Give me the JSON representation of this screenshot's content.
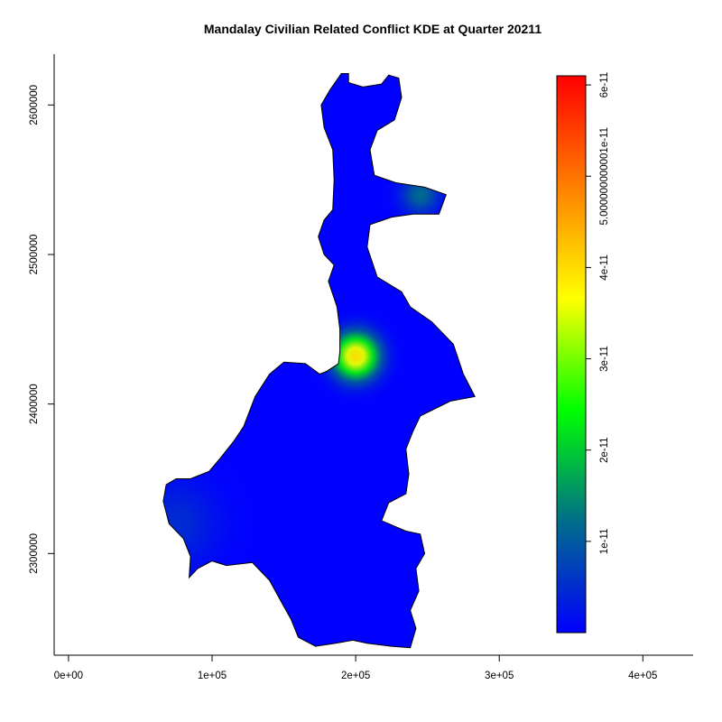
{
  "chart_data": {
    "type": "heatmap",
    "title": "Mandalay Civilian Related Conflict KDE at Quarter 20211",
    "subtitle": "",
    "xlabel": "",
    "ylabel": "",
    "xlim": [
      -10000,
      435000
    ],
    "ylim": [
      2232000,
      2634000
    ],
    "x_ticks": [
      0,
      100000,
      200000,
      300000,
      400000
    ],
    "x_tick_labels": [
      "0e+00",
      "1e+05",
      "2e+05",
      "3e+05",
      "4e+05"
    ],
    "y_ticks": [
      2300000,
      2400000,
      2500000,
      2600000
    ],
    "y_tick_labels": [
      "2300000",
      "2400000",
      "2500000",
      "2600000"
    ],
    "grid": false,
    "legend": "right",
    "colorbar": {
      "min": 0,
      "max": 6.1e-11,
      "ticks": [
        1e-11,
        2e-11,
        3e-11,
        4e-11,
        5e-11,
        6e-11
      ],
      "tick_labels": [
        "1e-11",
        "2e-11",
        "3e-11",
        "4e-11",
        "5.000000000001e-11",
        "6e-11"
      ],
      "colors": [
        "#0000ff",
        "#006d8a",
        "#00ff00",
        "#ffff00",
        "#ff8000",
        "#ff0000"
      ]
    },
    "region_outline": [
      [
        190000,
        2621000
      ],
      [
        195000,
        2621000
      ],
      [
        195000,
        2615000
      ],
      [
        205000,
        2612000
      ],
      [
        218000,
        2614000
      ],
      [
        223000,
        2620000
      ],
      [
        230000,
        2618000
      ],
      [
        232000,
        2605000
      ],
      [
        227000,
        2590000
      ],
      [
        215000,
        2583000
      ],
      [
        210000,
        2570000
      ],
      [
        213000,
        2553000
      ],
      [
        228000,
        2548000
      ],
      [
        248000,
        2545000
      ],
      [
        263000,
        2540000
      ],
      [
        258000,
        2527000
      ],
      [
        240000,
        2527000
      ],
      [
        225000,
        2525000
      ],
      [
        210000,
        2520000
      ],
      [
        208000,
        2505000
      ],
      [
        215000,
        2485000
      ],
      [
        232000,
        2475000
      ],
      [
        238000,
        2465000
      ],
      [
        253000,
        2455000
      ],
      [
        268000,
        2440000
      ],
      [
        275000,
        2420000
      ],
      [
        283000,
        2405000
      ],
      [
        266000,
        2402000
      ],
      [
        245000,
        2392000
      ],
      [
        240000,
        2382000
      ],
      [
        235000,
        2370000
      ],
      [
        237000,
        2353000
      ],
      [
        235000,
        2340000
      ],
      [
        223000,
        2334000
      ],
      [
        218000,
        2322000
      ],
      [
        235000,
        2315000
      ],
      [
        245000,
        2313000
      ],
      [
        248000,
        2300000
      ],
      [
        242000,
        2290000
      ],
      [
        244000,
        2275000
      ],
      [
        238000,
        2262000
      ],
      [
        242000,
        2250000
      ],
      [
        238000,
        2237000
      ],
      [
        225000,
        2238000
      ],
      [
        208000,
        2240000
      ],
      [
        198000,
        2242000
      ],
      [
        186000,
        2240000
      ],
      [
        172000,
        2238000
      ],
      [
        160000,
        2244000
      ],
      [
        155000,
        2256000
      ],
      [
        148000,
        2268000
      ],
      [
        140000,
        2282000
      ],
      [
        128000,
        2294000
      ],
      [
        110000,
        2292000
      ],
      [
        100000,
        2295000
      ],
      [
        90000,
        2290000
      ],
      [
        84000,
        2284000
      ],
      [
        85000,
        2298000
      ],
      [
        80000,
        2310000
      ],
      [
        70000,
        2320000
      ],
      [
        66000,
        2335000
      ],
      [
        68000,
        2346000
      ],
      [
        75000,
        2350000
      ],
      [
        85000,
        2350000
      ],
      [
        98000,
        2355000
      ],
      [
        105000,
        2363000
      ],
      [
        115000,
        2375000
      ],
      [
        122000,
        2385000
      ],
      [
        130000,
        2405000
      ],
      [
        140000,
        2420000
      ],
      [
        150000,
        2428000
      ],
      [
        165000,
        2427000
      ],
      [
        175000,
        2420000
      ],
      [
        180000,
        2422000
      ],
      [
        188000,
        2427000
      ],
      [
        189000,
        2435000
      ],
      [
        189000,
        2450000
      ],
      [
        187000,
        2465000
      ],
      [
        181000,
        2482000
      ],
      [
        185000,
        2493000
      ],
      [
        178000,
        2500000
      ],
      [
        174000,
        2512000
      ],
      [
        178000,
        2523000
      ],
      [
        184000,
        2530000
      ],
      [
        185000,
        2550000
      ],
      [
        184000,
        2570000
      ],
      [
        178000,
        2585000
      ],
      [
        176000,
        2600000
      ],
      [
        182000,
        2610000
      ]
    ],
    "hotspots": [
      {
        "x": 200000,
        "y": 2432000,
        "value": 4e-11,
        "sigma": 12000
      },
      {
        "x": 245000,
        "y": 2540000,
        "value": 1.2e-11,
        "sigma": 10000
      },
      {
        "x": 75000,
        "y": 2320000,
        "value": 5e-12,
        "sigma": 22000
      }
    ]
  }
}
